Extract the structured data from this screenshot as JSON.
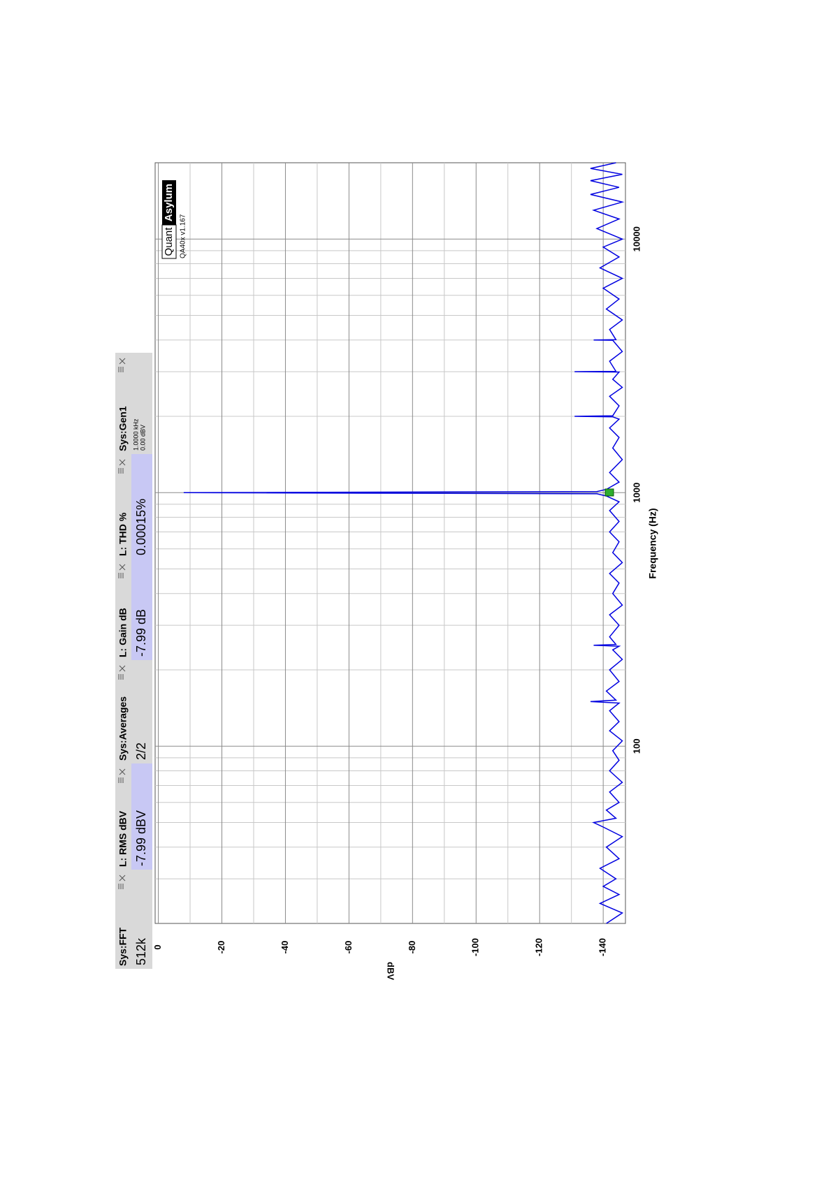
{
  "readouts": [
    {
      "name": "Sys:FFT",
      "value": "512k",
      "color": "#d9d9d9"
    },
    {
      "name": "L: RMS dBV",
      "value": "-7.99 dBV",
      "color": "#c8c8f4"
    },
    {
      "name": "Sys:Averages",
      "value": "2/2",
      "color": "#d9d9d9"
    },
    {
      "name": "L: Gain dB",
      "value": "-7.99 dB",
      "color": "#c8c8f4"
    },
    {
      "name": "L: THD %",
      "value": "0.00015%",
      "color": "#c8c8f4"
    },
    {
      "name": "Sys:Gen1",
      "lines": [
        "1.0000 kHz",
        "0.00 dBV"
      ],
      "color": "#d9d9d9"
    }
  ],
  "logo": {
    "part1": "Quant",
    "part2": "Asylum",
    "version": "QA40x v1.167"
  },
  "chart_data": {
    "type": "line",
    "xlabel": "Frequency (Hz)",
    "ylabel": "dBV",
    "log_x": true,
    "grid": true,
    "xlim": [
      20,
      20000
    ],
    "xticks": [
      100,
      1000,
      10000
    ],
    "xminor_ticks": [
      30,
      40,
      50,
      60,
      70,
      80,
      90,
      200,
      300,
      400,
      500,
      600,
      700,
      800,
      900,
      2000,
      3000,
      4000,
      5000,
      6000,
      7000,
      8000,
      9000
    ],
    "ylim": [
      1,
      -147
    ],
    "yticks": [
      0,
      -20,
      -40,
      -60,
      -80,
      -100,
      -120,
      -140
    ],
    "yminor_ticks": [
      -10,
      -30,
      -50,
      -70,
      -90,
      -110,
      -130
    ],
    "series": [
      {
        "name": "L",
        "color": "#0000e0",
        "x": [
          20,
          22,
          24,
          26,
          28,
          30,
          33,
          36,
          40,
          44,
          48,
          50,
          52,
          56,
          60,
          66,
          72,
          80,
          88,
          96,
          105,
          115,
          125,
          138,
          148,
          150,
          152,
          165,
          180,
          200,
          220,
          240,
          248,
          250,
          252,
          270,
          300,
          330,
          360,
          400,
          440,
          480,
          530,
          580,
          640,
          700,
          770,
          850,
          920,
          970,
          990,
          1000,
          1010,
          1030,
          1100,
          1200,
          1350,
          1500,
          1650,
          1800,
          1950,
          1990,
          2000,
          2010,
          2200,
          2400,
          2600,
          2800,
          2990,
          3000,
          3010,
          3300,
          3600,
          3990,
          4000,
          4010,
          4400,
          4800,
          5300,
          5800,
          6400,
          7000,
          7700,
          8500,
          9300,
          10000,
          11000,
          12000,
          13000,
          14000,
          15000,
          16000,
          17000,
          18000,
          19000,
          20000
        ],
        "values": [
          -141,
          -146,
          -139,
          -145,
          -140,
          -144,
          -139,
          -145,
          -141,
          -146,
          -140,
          -137,
          -144,
          -141,
          -145,
          -142,
          -146,
          -142,
          -145,
          -143,
          -146,
          -142,
          -145,
          -142,
          -145,
          -136,
          -144,
          -141,
          -145,
          -142,
          -146,
          -143,
          -145,
          -137,
          -144,
          -142,
          -145,
          -142,
          -146,
          -143,
          -145,
          -142,
          -146,
          -143,
          -145,
          -142,
          -145,
          -142,
          -145,
          -141,
          -138,
          -8,
          -138,
          -141,
          -145,
          -142,
          -146,
          -143,
          -145,
          -142,
          -145,
          -143,
          -131,
          -143,
          -145,
          -142,
          -146,
          -143,
          -145,
          -131,
          -144,
          -142,
          -146,
          -143,
          -137,
          -144,
          -142,
          -146,
          -141,
          -145,
          -140,
          -146,
          -139,
          -145,
          -140,
          -146,
          -138,
          -145,
          -137,
          -146,
          -136,
          -145,
          -136,
          -146,
          -136,
          -144
        ]
      }
    ]
  }
}
